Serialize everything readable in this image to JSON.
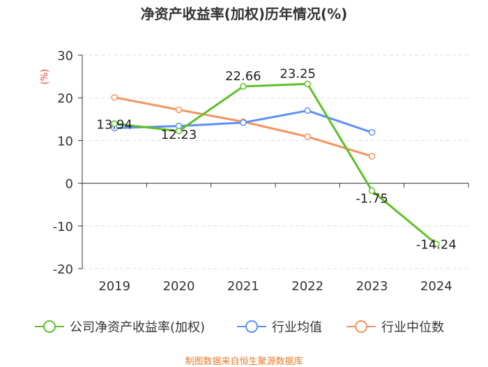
{
  "chart_data": {
    "type": "line",
    "title": "净资产收益率(加权)历年情况(%)",
    "ylabel": "(%)",
    "xlabel": "",
    "categories": [
      "2019",
      "2020",
      "2021",
      "2022",
      "2023",
      "2024"
    ],
    "ylim": [
      -20,
      30
    ],
    "yticks": [
      -20,
      -10,
      0,
      10,
      20,
      30
    ],
    "grid": true,
    "legend_position": "bottom",
    "series": [
      {
        "name": "公司净资产收益率(加权)",
        "color": "#5ec026",
        "values": [
          13.94,
          12.23,
          22.66,
          23.25,
          -1.75,
          -14.24
        ],
        "labels": [
          "13.94",
          "12.23",
          "22.66",
          "23.25",
          "-1.75",
          "-14.24"
        ]
      },
      {
        "name": "行业均值",
        "color": "#5b8ff9",
        "values": [
          12.9,
          13.4,
          14.2,
          17.0,
          11.9,
          null
        ]
      },
      {
        "name": "行业中位数",
        "color": "#f5935c",
        "values": [
          20.1,
          17.2,
          14.4,
          10.9,
          6.3,
          null
        ]
      }
    ]
  },
  "footer": "制图数据来自恒生聚源数据库"
}
